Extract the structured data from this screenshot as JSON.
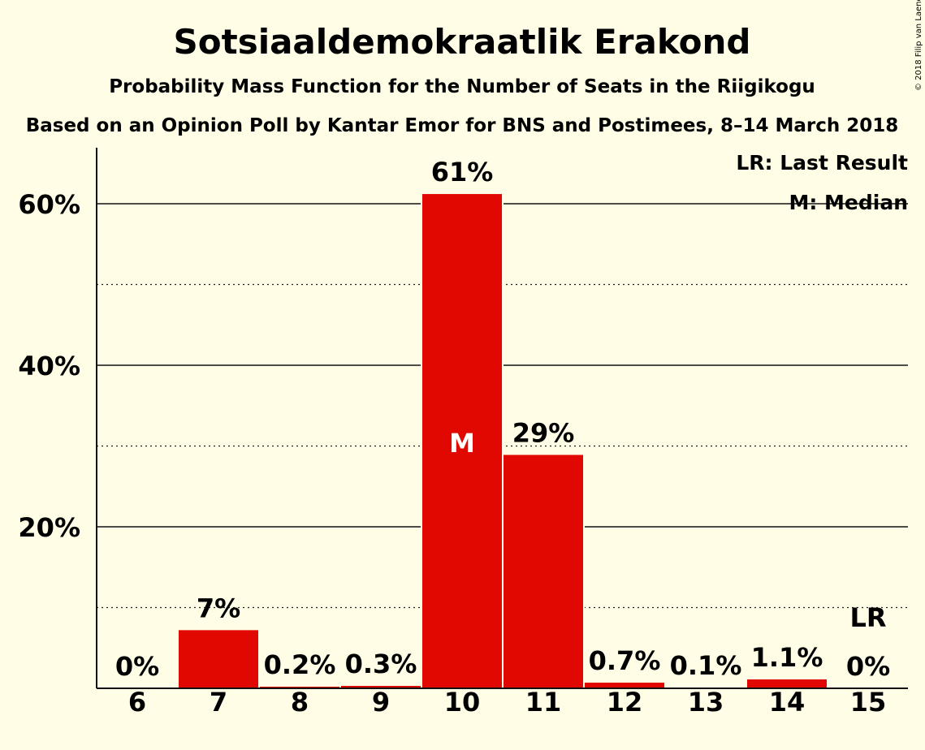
{
  "copyright": "© 2018 Filip van Laenen",
  "chart_data": {
    "type": "bar",
    "title": "Sotsiaaldemokraatlik Erakond",
    "subtitle": "Probability Mass Function for the Number of Seats in the Riigikogu",
    "subtitle2": "Based on an Opinion Poll by Kantar Emor for BNS and Postimees, 8–14 March 2018",
    "xlabel": "",
    "ylabel": "",
    "ylim": [
      0,
      66
    ],
    "yticks": [
      20,
      40,
      60
    ],
    "ytick_labels": [
      "20%",
      "40%",
      "60%"
    ],
    "minor_gridlines": [
      10,
      30,
      50
    ],
    "categories": [
      "6",
      "7",
      "8",
      "9",
      "10",
      "11",
      "12",
      "13",
      "14",
      "15"
    ],
    "values": [
      0,
      7.2,
      0.2,
      0.3,
      61.2,
      28.9,
      0.7,
      0.1,
      1.1,
      0
    ],
    "data_labels": [
      "0%",
      "7%",
      "0.2%",
      "0.3%",
      "61%",
      "29%",
      "0.7%",
      "0.1%",
      "1.1%",
      "0%"
    ],
    "bar_color": "#E00800",
    "background_color": "#FFFDE6",
    "median_index": 4,
    "median_marker": "M",
    "last_result_index": 9,
    "last_result_marker": "LR",
    "legend": [
      "LR: Last Result",
      "M: Median"
    ],
    "legend_position": "top-right"
  }
}
